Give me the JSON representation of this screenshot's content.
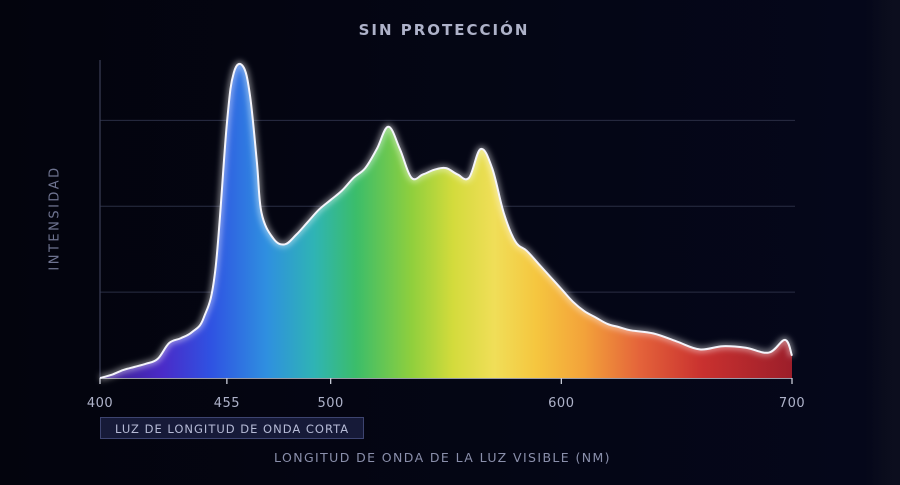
{
  "chart_data": {
    "type": "area",
    "title": "SIN PROTECCIÓN",
    "ylabel": "INTENSIDAD",
    "xlabel": "LONGITUD DE ONDA DE LA LUZ VISIBLE (NM)",
    "xlim": [
      400,
      700
    ],
    "ylim": [
      0,
      100
    ],
    "xticks": [
      400,
      455,
      500,
      600,
      700
    ],
    "grid": true,
    "annotation": {
      "label": "LUZ DE LONGITUD DE ONDA CORTA",
      "range": [
        400,
        455
      ]
    },
    "x": [
      400,
      405,
      410,
      415,
      420,
      425,
      430,
      435,
      440,
      445,
      450,
      455,
      458,
      462,
      465,
      468,
      470,
      475,
      480,
      485,
      490,
      495,
      500,
      505,
      510,
      515,
      520,
      525,
      530,
      535,
      540,
      545,
      550,
      555,
      560,
      565,
      570,
      575,
      580,
      585,
      590,
      595,
      600,
      605,
      610,
      615,
      620,
      625,
      630,
      640,
      650,
      660,
      670,
      680,
      690,
      697,
      700
    ],
    "values": [
      0,
      1,
      2.5,
      3.5,
      4.5,
      6,
      11,
      12.5,
      14.5,
      19,
      34,
      80,
      96,
      98,
      89,
      68,
      52,
      44,
      42,
      45,
      49,
      53,
      56,
      59,
      63,
      66,
      72,
      79,
      72,
      63,
      64,
      65.5,
      66,
      64,
      63,
      72,
      66,
      52,
      43,
      40,
      36,
      32,
      28,
      24,
      21,
      19,
      17,
      16,
      15,
      14,
      11.5,
      9,
      10,
      9.5,
      8,
      12,
      7
    ]
  }
}
